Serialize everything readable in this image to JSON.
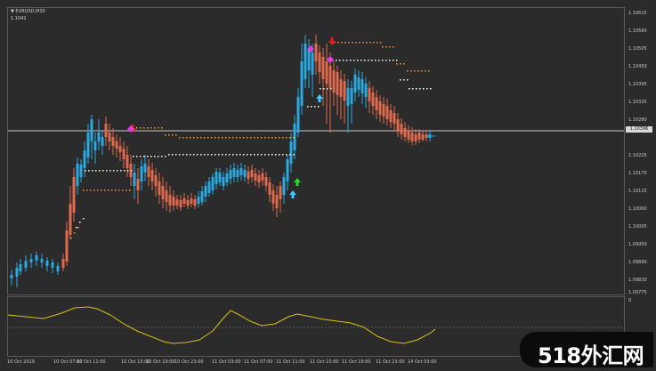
{
  "chart": {
    "symbol": "▼ EURUSD,M30",
    "ohlc": "1.1042",
    "current_price": "1.10396"
  },
  "price_scale": [
    "1.10615",
    "1.10560",
    "1.10505",
    "1.10450",
    "1.10395",
    "1.10335",
    "1.10280",
    "1.10225",
    "1.10170",
    "1.10115",
    "1.10060",
    "1.10005",
    "1.09950",
    "1.09890",
    "1.09830",
    "1.09775"
  ],
  "osc_scale": [
    "0"
  ],
  "time_axis": [
    "10 Oct 2019",
    "10 Oct 07:00",
    "10 Oct 11:00",
    "10 Oct 15:00",
    "10 Oct 19:00",
    "10 Oct 23:00",
    "11 Oct 03:00",
    "11 Oct 07:00",
    "11 Oct 11:00",
    "11 Oct 15:00",
    "11 Oct 19:00",
    "11 Oct 23:00",
    "14 Oct 03:00"
  ],
  "colors": {
    "bull": "#29a9e0",
    "bear": "#e06a4e",
    "background": "#2b2b2b",
    "grid": "#5a5a5a",
    "trail_orange": "#ff9a1e",
    "trail_white": "#ffffff",
    "oscillator": "#d6c21a",
    "arrow_up_green": "#22dd22",
    "arrow_up_cyan": "#3ec9ff",
    "arrow_down_red": "#e02020",
    "marker_magenta": "#e040e0"
  },
  "watermark": {
    "text": "518外汇网"
  }
}
